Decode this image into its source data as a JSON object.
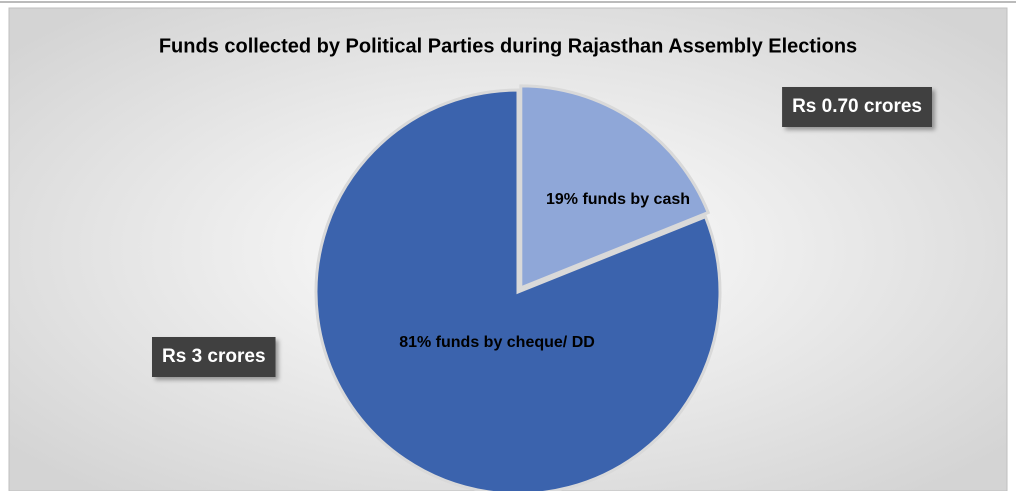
{
  "chart_data": {
    "type": "pie",
    "title": "Funds collected  by Political Parties during Rajasthan Assembly Elections",
    "categories": [
      "19% funds by cash",
      "81% funds by cheque/ DD"
    ],
    "values": [
      0.7,
      3
    ],
    "value_labels": [
      "Rs 0.70 crores",
      "Rs 3 crores"
    ],
    "colors": [
      "#8fa7d8",
      "#3b63ad"
    ]
  }
}
